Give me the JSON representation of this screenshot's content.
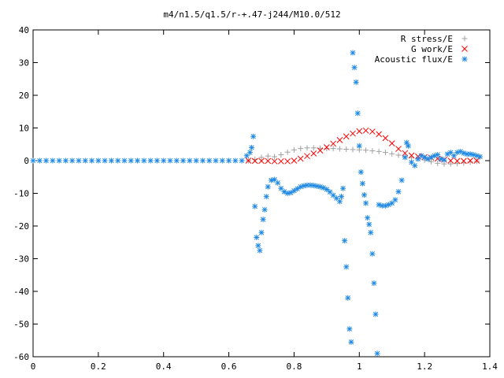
{
  "chart_data": {
    "type": "scatter",
    "title": "m4/n1.5/q1.5/r-+.47-j244/M10.0/512",
    "xlabel": "",
    "ylabel": "",
    "xlim": [
      0,
      1.4
    ],
    "ylim": [
      -60,
      40
    ],
    "x_ticks": [
      "0",
      "0.2",
      "0.4",
      "0.6",
      "0.8",
      "1",
      "1.2",
      "1.4"
    ],
    "x_tick_values": [
      0,
      0.2,
      0.4,
      0.6,
      0.8,
      1.0,
      1.2,
      1.4
    ],
    "y_ticks": [
      "40",
      "30",
      "20",
      "10",
      "0",
      "-10",
      "-20",
      "-30",
      "-40",
      "-50",
      "-60"
    ],
    "y_tick_values": [
      40,
      30,
      20,
      10,
      0,
      -10,
      -20,
      -30,
      -40,
      -50,
      -60
    ],
    "grid": false,
    "legend_position": "top-right",
    "series": [
      {
        "name": "R stress/E",
        "marker": "plus",
        "color": "#a0a0a0",
        "points": [
          [
            0.66,
            0.0
          ],
          [
            0.68,
            0.4
          ],
          [
            0.7,
            1.0
          ],
          [
            0.72,
            1.4
          ],
          [
            0.74,
            1.2
          ],
          [
            0.76,
            1.8
          ],
          [
            0.78,
            2.6
          ],
          [
            0.8,
            3.3
          ],
          [
            0.82,
            3.7
          ],
          [
            0.84,
            3.9
          ],
          [
            0.86,
            3.9
          ],
          [
            0.88,
            3.8
          ],
          [
            0.9,
            3.7
          ],
          [
            0.92,
            3.7
          ],
          [
            0.94,
            3.6
          ],
          [
            0.96,
            3.5
          ],
          [
            0.98,
            3.4
          ],
          [
            1.0,
            3.3
          ],
          [
            1.02,
            3.2
          ],
          [
            1.04,
            3.0
          ],
          [
            1.06,
            2.8
          ],
          [
            1.08,
            2.5
          ],
          [
            1.1,
            2.1
          ],
          [
            1.12,
            1.7
          ],
          [
            1.14,
            1.3
          ],
          [
            1.16,
            0.9
          ],
          [
            1.18,
            0.5
          ],
          [
            1.2,
            0.2
          ],
          [
            1.22,
            -0.3
          ],
          [
            1.24,
            -0.8
          ],
          [
            1.26,
            -1.0
          ],
          [
            1.28,
            -1.0
          ],
          [
            1.3,
            -0.9
          ],
          [
            1.32,
            -0.7
          ],
          [
            1.34,
            -0.4
          ],
          [
            1.36,
            -0.2
          ]
        ]
      },
      {
        "name": "G work/E",
        "marker": "cross",
        "color": "#ff0000",
        "points": [
          [
            0.66,
            0.0
          ],
          [
            0.68,
            -0.1
          ],
          [
            0.7,
            -0.1
          ],
          [
            0.72,
            -0.1
          ],
          [
            0.74,
            -0.2
          ],
          [
            0.76,
            -0.2
          ],
          [
            0.78,
            -0.2
          ],
          [
            0.8,
            0.0
          ],
          [
            0.82,
            0.6
          ],
          [
            0.84,
            1.4
          ],
          [
            0.86,
            2.2
          ],
          [
            0.88,
            3.1
          ],
          [
            0.9,
            4.1
          ],
          [
            0.92,
            5.2
          ],
          [
            0.94,
            6.3
          ],
          [
            0.96,
            7.4
          ],
          [
            0.98,
            8.3
          ],
          [
            1.0,
            9.0
          ],
          [
            1.02,
            9.2
          ],
          [
            1.04,
            8.9
          ],
          [
            1.06,
            8.1
          ],
          [
            1.08,
            6.9
          ],
          [
            1.1,
            5.3
          ],
          [
            1.12,
            3.6
          ],
          [
            1.14,
            2.3
          ],
          [
            1.16,
            1.6
          ],
          [
            1.18,
            1.3
          ],
          [
            1.2,
            1.1
          ],
          [
            1.22,
            0.9
          ],
          [
            1.24,
            0.6
          ],
          [
            1.26,
            0.3
          ],
          [
            1.28,
            0.0
          ],
          [
            1.3,
            -0.1
          ],
          [
            1.32,
            -0.1
          ],
          [
            1.34,
            0.0
          ],
          [
            1.36,
            0.0
          ]
        ]
      },
      {
        "name": "Acoustic flux/E",
        "marker": "star",
        "color": "#1e88e5",
        "points": [
          [
            0.0,
            0.0
          ],
          [
            0.02,
            0.0
          ],
          [
            0.04,
            0.0
          ],
          [
            0.06,
            0.0
          ],
          [
            0.08,
            0.0
          ],
          [
            0.1,
            0.0
          ],
          [
            0.12,
            0.0
          ],
          [
            0.14,
            0.0
          ],
          [
            0.16,
            0.0
          ],
          [
            0.18,
            0.0
          ],
          [
            0.2,
            0.0
          ],
          [
            0.22,
            0.0
          ],
          [
            0.24,
            0.0
          ],
          [
            0.26,
            0.0
          ],
          [
            0.28,
            0.0
          ],
          [
            0.3,
            0.0
          ],
          [
            0.32,
            0.0
          ],
          [
            0.34,
            0.0
          ],
          [
            0.36,
            0.0
          ],
          [
            0.38,
            0.0
          ],
          [
            0.4,
            0.0
          ],
          [
            0.42,
            0.0
          ],
          [
            0.44,
            0.0
          ],
          [
            0.46,
            0.0
          ],
          [
            0.48,
            0.0
          ],
          [
            0.5,
            0.0
          ],
          [
            0.52,
            0.0
          ],
          [
            0.54,
            0.0
          ],
          [
            0.56,
            0.0
          ],
          [
            0.58,
            0.0
          ],
          [
            0.6,
            0.0
          ],
          [
            0.62,
            0.0
          ],
          [
            0.64,
            0.0
          ],
          [
            0.655,
            1.5
          ],
          [
            0.665,
            2.5
          ],
          [
            0.67,
            4.0
          ],
          [
            0.675,
            7.4
          ],
          [
            0.68,
            -14.0
          ],
          [
            0.685,
            -23.5
          ],
          [
            0.69,
            -26.0
          ],
          [
            0.695,
            -27.5
          ],
          [
            0.7,
            -22.0
          ],
          [
            0.705,
            -18.0
          ],
          [
            0.71,
            -15.0
          ],
          [
            0.715,
            -11.0
          ],
          [
            0.72,
            -8.0
          ],
          [
            0.73,
            -6.0
          ],
          [
            0.74,
            -5.8
          ],
          [
            0.75,
            -6.8
          ],
          [
            0.76,
            -8.5
          ],
          [
            0.77,
            -9.5
          ],
          [
            0.78,
            -10.0
          ],
          [
            0.79,
            -9.8
          ],
          [
            0.8,
            -9.2
          ],
          [
            0.81,
            -8.6
          ],
          [
            0.82,
            -8.0
          ],
          [
            0.83,
            -7.7
          ],
          [
            0.84,
            -7.5
          ],
          [
            0.85,
            -7.5
          ],
          [
            0.86,
            -7.6
          ],
          [
            0.87,
            -7.8
          ],
          [
            0.88,
            -8.0
          ],
          [
            0.89,
            -8.3
          ],
          [
            0.9,
            -8.8
          ],
          [
            0.91,
            -9.6
          ],
          [
            0.92,
            -10.6
          ],
          [
            0.93,
            -11.5
          ],
          [
            0.94,
            -12.5
          ],
          [
            0.945,
            -11.0
          ],
          [
            0.95,
            -8.5
          ],
          [
            0.955,
            -24.5
          ],
          [
            0.96,
            -32.5
          ],
          [
            0.965,
            -42.0
          ],
          [
            0.97,
            -51.5
          ],
          [
            0.975,
            -55.5
          ],
          [
            0.98,
            33.0
          ],
          [
            0.985,
            28.5
          ],
          [
            0.99,
            24.0
          ],
          [
            0.995,
            14.5
          ],
          [
            1.0,
            4.5
          ],
          [
            1.005,
            -3.5
          ],
          [
            1.01,
            -7.0
          ],
          [
            1.015,
            -10.5
          ],
          [
            1.02,
            -13.0
          ],
          [
            1.025,
            -17.5
          ],
          [
            1.03,
            -19.5
          ],
          [
            1.035,
            -22.0
          ],
          [
            1.04,
            -28.5
          ],
          [
            1.045,
            -37.5
          ],
          [
            1.05,
            -47.0
          ],
          [
            1.055,
            -59.0
          ],
          [
            1.06,
            -13.5
          ],
          [
            1.07,
            -13.8
          ],
          [
            1.08,
            -13.8
          ],
          [
            1.09,
            -13.5
          ],
          [
            1.1,
            -13.0
          ],
          [
            1.11,
            -12.0
          ],
          [
            1.12,
            -9.5
          ],
          [
            1.13,
            -6.0
          ],
          [
            1.14,
            1.0
          ],
          [
            1.145,
            5.5
          ],
          [
            1.15,
            4.5
          ],
          [
            1.16,
            -0.5
          ],
          [
            1.17,
            -1.5
          ],
          [
            1.18,
            0.5
          ],
          [
            1.19,
            1.5
          ],
          [
            1.2,
            1.0
          ],
          [
            1.21,
            0.5
          ],
          [
            1.22,
            1.0
          ],
          [
            1.23,
            1.5
          ],
          [
            1.24,
            1.8
          ],
          [
            1.25,
            0.5
          ],
          [
            1.26,
            0.2
          ],
          [
            1.27,
            2.0
          ],
          [
            1.28,
            2.5
          ],
          [
            1.29,
            1.5
          ],
          [
            1.3,
            2.5
          ],
          [
            1.31,
            2.8
          ],
          [
            1.32,
            2.3
          ],
          [
            1.33,
            2.0
          ],
          [
            1.34,
            2.0
          ],
          [
            1.35,
            1.8
          ],
          [
            1.36,
            1.5
          ],
          [
            1.37,
            1.2
          ]
        ]
      }
    ]
  }
}
